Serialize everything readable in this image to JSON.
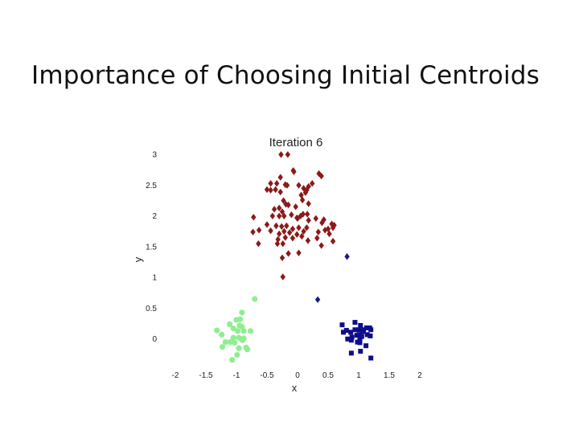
{
  "slide": {
    "title": "Importance of Choosing Initial Centroids"
  },
  "chart_data": {
    "type": "scatter",
    "title": "Iteration 6",
    "xlabel": "x",
    "ylabel": "y",
    "xlim": [
      -2,
      2
    ],
    "ylim": [
      -0.3,
      3
    ],
    "x_ticks": [
      -2,
      -1.5,
      -1,
      -0.5,
      0,
      0.5,
      1,
      1.5,
      2
    ],
    "y_ticks": [
      0,
      0.5,
      1,
      1.5,
      2,
      2.5,
      3
    ],
    "grid": false,
    "series": [
      {
        "color": "#8b1a1a",
        "marker": "diamond",
        "points": [
          [
            -0.27,
            2.99
          ],
          [
            -0.16,
            2.99
          ],
          [
            -0.06,
            2.71
          ],
          [
            -0.07,
            2.73
          ],
          [
            0.35,
            2.68
          ],
          [
            0.39,
            2.64
          ],
          [
            -0.28,
            2.62
          ],
          [
            -0.34,
            2.52
          ],
          [
            -0.44,
            2.52
          ],
          [
            -0.2,
            2.5
          ],
          [
            -0.5,
            2.42
          ],
          [
            -0.44,
            2.41
          ],
          [
            -0.36,
            2.42
          ],
          [
            -0.17,
            2.49
          ],
          [
            0.02,
            2.49
          ],
          [
            0.1,
            2.44
          ],
          [
            0.15,
            2.41
          ],
          [
            0.18,
            2.47
          ],
          [
            0.13,
            2.37
          ],
          [
            0.24,
            2.52
          ],
          [
            -0.23,
            2.24
          ],
          [
            -0.19,
            2.18
          ],
          [
            -0.28,
            2.38
          ],
          [
            -0.15,
            2.17
          ],
          [
            -0.03,
            2.14
          ],
          [
            0.06,
            2.33
          ],
          [
            0.08,
            2.25
          ],
          [
            0.18,
            2.19
          ],
          [
            0.16,
            2.02
          ],
          [
            -0.38,
            2.1
          ],
          [
            -0.3,
            2.12
          ],
          [
            -0.25,
            2.06
          ],
          [
            -0.41,
            1.99
          ],
          [
            -0.3,
            1.99
          ],
          [
            -0.22,
            1.99
          ],
          [
            -0.1,
            2.01
          ],
          [
            -0.01,
            1.96
          ],
          [
            0.0,
            1.95
          ],
          [
            0.05,
            1.99
          ],
          [
            0.09,
            2.02
          ],
          [
            0.18,
            1.92
          ],
          [
            0.3,
            1.95
          ],
          [
            0.43,
            1.93
          ],
          [
            0.56,
            1.86
          ],
          [
            0.58,
            1.8
          ],
          [
            0.6,
            1.84
          ],
          [
            -0.72,
            1.97
          ],
          [
            -0.5,
            1.85
          ],
          [
            -0.35,
            1.83
          ],
          [
            -0.26,
            1.82
          ],
          [
            -0.18,
            1.83
          ],
          [
            -0.08,
            1.78
          ],
          [
            0.02,
            1.8
          ],
          [
            0.15,
            1.8
          ],
          [
            0.4,
            1.88
          ],
          [
            0.5,
            1.78
          ],
          [
            0.52,
            1.7
          ],
          [
            -0.63,
            1.76
          ],
          [
            -0.44,
            1.75
          ],
          [
            -0.3,
            1.7
          ],
          [
            -0.22,
            1.74
          ],
          [
            -0.13,
            1.72
          ],
          [
            0.1,
            1.74
          ],
          [
            -0.01,
            1.69
          ],
          [
            0.07,
            1.66
          ],
          [
            0.34,
            1.73
          ],
          [
            0.45,
            1.76
          ],
          [
            -0.73,
            1.73
          ],
          [
            -0.32,
            1.61
          ],
          [
            -0.2,
            1.64
          ],
          [
            -0.08,
            1.63
          ],
          [
            0.17,
            1.59
          ],
          [
            0.32,
            1.63
          ],
          [
            0.58,
            1.58
          ],
          [
            -0.64,
            1.54
          ],
          [
            -0.33,
            1.54
          ],
          [
            -0.24,
            1.54
          ],
          [
            0.39,
            1.51
          ],
          [
            -0.15,
            1.38
          ],
          [
            0.02,
            1.39
          ],
          [
            -0.25,
            1.31
          ],
          [
            -0.24,
            1.0
          ]
        ]
      },
      {
        "color": "#1a1a80",
        "marker": "diamond",
        "points": [
          [
            0.81,
            1.33
          ],
          [
            0.33,
            0.63
          ]
        ]
      },
      {
        "color": "#0d0d8c",
        "marker": "square",
        "points": [
          [
            0.73,
            0.22
          ],
          [
            0.94,
            0.26
          ],
          [
            1.03,
            0.21
          ],
          [
            0.75,
            0.1
          ],
          [
            0.87,
            0.1
          ],
          [
            0.94,
            0.14
          ],
          [
            1.0,
            0.14
          ],
          [
            1.08,
            0.14
          ],
          [
            1.13,
            0.17
          ],
          [
            1.18,
            0.17
          ],
          [
            1.2,
            0.14
          ],
          [
            1.07,
            0.11
          ],
          [
            0.8,
            0.13
          ],
          [
            0.89,
            0.02
          ],
          [
            0.97,
            0.05
          ],
          [
            1.01,
            0.06
          ],
          [
            1.05,
            0.03
          ],
          [
            1.14,
            0.06
          ],
          [
            1.19,
            0.04
          ],
          [
            1.02,
            -0.01
          ],
          [
            0.82,
            -0.01
          ],
          [
            0.88,
            -0.03
          ],
          [
            0.98,
            -0.06
          ],
          [
            1.02,
            -0.07
          ],
          [
            1.12,
            -0.12
          ],
          [
            0.88,
            -0.24
          ],
          [
            1.03,
            -0.21
          ],
          [
            1.2,
            -0.32
          ]
        ]
      },
      {
        "color": "#90ee90",
        "marker": "circle",
        "points": [
          [
            -0.7,
            0.64
          ],
          [
            -0.91,
            0.42
          ],
          [
            -0.94,
            0.31
          ],
          [
            -1.0,
            0.3
          ],
          [
            -1.11,
            0.23
          ],
          [
            -0.95,
            0.21
          ],
          [
            -0.91,
            0.19
          ],
          [
            -1.05,
            0.16
          ],
          [
            -0.98,
            0.12
          ],
          [
            -0.88,
            0.12
          ],
          [
            -0.77,
            0.12
          ],
          [
            -1.32,
            0.13
          ],
          [
            -1.24,
            0.06
          ],
          [
            -1.05,
            0.01
          ],
          [
            -0.96,
            0.01
          ],
          [
            -0.88,
            0.0
          ],
          [
            -0.9,
            -0.03
          ],
          [
            -1.18,
            -0.06
          ],
          [
            -1.1,
            -0.06
          ],
          [
            -1.03,
            -0.07
          ],
          [
            -1.23,
            -0.14
          ],
          [
            -0.96,
            -0.16
          ],
          [
            -0.84,
            -0.15
          ],
          [
            -0.82,
            -0.18
          ],
          [
            -0.99,
            -0.27
          ],
          [
            -1.07,
            -0.35
          ]
        ]
      }
    ]
  }
}
